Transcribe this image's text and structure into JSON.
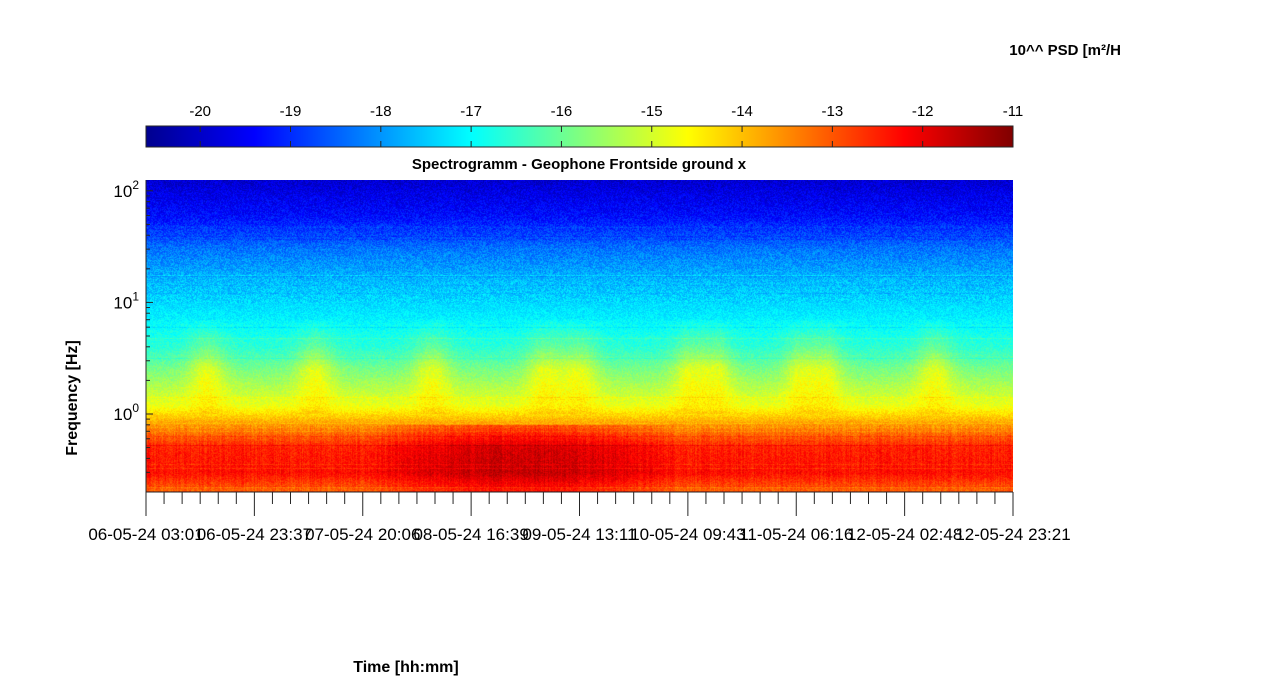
{
  "chart_data": {
    "type": "heatmap",
    "title": "Spectrogramm - Geophone Frontside ground x",
    "xlabel": "Time [hh:mm]",
    "ylabel": "Frequency [Hz]",
    "y_scale": "log",
    "ylim": [
      0.2,
      125
    ],
    "y_ticks": [
      {
        "value": 1,
        "base": "10",
        "exp": "0"
      },
      {
        "value": 10,
        "base": "10",
        "exp": "1"
      },
      {
        "value": 100,
        "base": "10",
        "exp": "2"
      }
    ],
    "x_tick_labels": [
      "06-05-24  03:01",
      "06-05-24  23:37",
      "07-05-24  20:06",
      "08-05-24  16:39",
      "09-05-24  13:11",
      "10-05-24  09:43",
      "11-05-24  06:16",
      "12-05-24  02:48",
      "12-05-24  23:21"
    ],
    "colorbar": {
      "label": "10^^ PSD [m²/H",
      "colormap": "jet",
      "range": [
        -20.6,
        -11
      ],
      "ticks": [
        -20,
        -19,
        -18,
        -17,
        -16,
        -15,
        -14,
        -13,
        -12,
        -11
      ],
      "tick_labels": [
        "-20",
        "-19",
        "-18",
        "-17",
        "-16",
        "-15",
        "-14",
        "-13",
        "-12",
        "-11"
      ]
    },
    "approx_log_psd_profile": [
      {
        "freq_hz": 120,
        "value": -19.8
      },
      {
        "freq_hz": 60,
        "value": -19.3
      },
      {
        "freq_hz": 30,
        "value": -18.3
      },
      {
        "freq_hz": 15,
        "value": -17.6
      },
      {
        "freq_hz": 8,
        "value": -17.2
      },
      {
        "freq_hz": 4,
        "value": -16.6
      },
      {
        "freq_hz": 2,
        "value": -15.5
      },
      {
        "freq_hz": 1.2,
        "value": -14.8
      },
      {
        "freq_hz": 0.8,
        "value": -13.6
      },
      {
        "freq_hz": 0.5,
        "value": -12.5
      },
      {
        "freq_hz": 0.3,
        "value": -12.3
      },
      {
        "freq_hz": 0.2,
        "value": -13.2
      }
    ],
    "activity_peaks_at_x_fraction": [
      0.07,
      0.195,
      0.33,
      0.46,
      0.5,
      0.63,
      0.655,
      0.76,
      0.78,
      0.91
    ],
    "dark_low_frequency_region_x_fraction": [
      0.25,
      0.62
    ]
  }
}
